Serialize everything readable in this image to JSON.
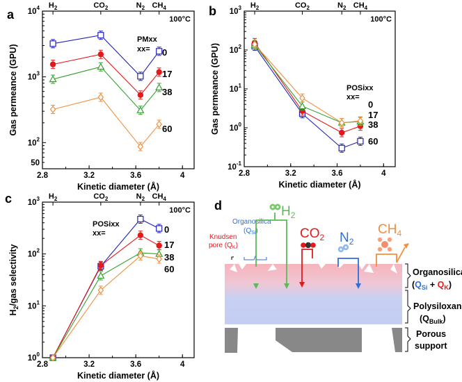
{
  "colors": {
    "blue": "#2222bb",
    "red": "#e31a1c",
    "green": "#33a02c",
    "orange": "#f28e3a",
    "organosilica_top": "#f4b0b8",
    "polysiloxane": "#c3cdf0",
    "support": "#888888"
  },
  "chart_data": [
    {
      "panel": "a",
      "type": "line",
      "xlabel": "Kinetic diameter (Å)",
      "ylabel": "Gas permeance (GPU)",
      "yscale": "log",
      "xlim": [
        2.8,
        4.1
      ],
      "ylim": [
        40,
        10000
      ],
      "xticks": [
        "2.8",
        "3.2",
        "3.6",
        "4"
      ],
      "yticks": [
        {
          "value": 100,
          "base": "10",
          "exp": "2"
        },
        {
          "value": 1000,
          "base": "10",
          "exp": "3"
        },
        {
          "value": 10000,
          "base": "10",
          "exp": "4"
        }
      ],
      "yticks_plain": [
        {
          "value": 50,
          "label": "50"
        }
      ],
      "top_axis": [
        {
          "x": 2.89,
          "base": "H",
          "sub": "2"
        },
        {
          "x": 3.3,
          "base": "CO",
          "sub": "2"
        },
        {
          "x": 3.64,
          "base": "N",
          "sub": "2"
        },
        {
          "x": 3.8,
          "base": "CH",
          "sub": "4"
        }
      ],
      "condition": "100°C",
      "legend_title": "PMxx",
      "legend_sub": "xx=",
      "x": [
        2.89,
        3.3,
        3.64,
        3.8
      ],
      "series": [
        {
          "name": "0",
          "color": "blue",
          "marker": "square",
          "values": [
            3200,
            4300,
            1020,
            2450
          ]
        },
        {
          "name": "17",
          "color": "red",
          "marker": "circle",
          "values": [
            1550,
            2200,
            530,
            1180
          ]
        },
        {
          "name": "38",
          "color": "green",
          "marker": "triangle",
          "values": [
            920,
            1420,
            310,
            690
          ]
        },
        {
          "name": "60",
          "color": "orange",
          "marker": "diamond",
          "values": [
            320,
            490,
            87,
            190
          ]
        }
      ]
    },
    {
      "panel": "b",
      "type": "line",
      "xlabel": "Kinetic diameter (Å)",
      "ylabel": "Gas permeance (GPU)",
      "yscale": "log",
      "xlim": [
        2.8,
        4.1
      ],
      "ylim": [
        0.1,
        1000
      ],
      "xticks": [
        "2.8",
        "3.2",
        "3.6",
        "4"
      ],
      "yticks": [
        {
          "value": 0.1,
          "base": "10",
          "exp": "-1"
        },
        {
          "value": 1,
          "base": "10",
          "exp": "0"
        },
        {
          "value": 10,
          "base": "10",
          "exp": "1"
        },
        {
          "value": 100,
          "base": "10",
          "exp": "2"
        },
        {
          "value": 1000,
          "base": "10",
          "exp": "3"
        }
      ],
      "yticks_plain": [],
      "top_axis": [
        {
          "x": 2.89,
          "base": "H",
          "sub": "2"
        },
        {
          "x": 3.3,
          "base": "CO",
          "sub": "2"
        },
        {
          "x": 3.64,
          "base": "N",
          "sub": "2"
        },
        {
          "x": 3.8,
          "base": "CH",
          "sub": "4"
        }
      ],
      "condition": "100°C",
      "legend_title": "POSixx",
      "legend_sub": "xx=",
      "x": [
        2.89,
        3.3,
        3.64,
        3.8
      ],
      "series": [
        {
          "name": "0",
          "color": "blue",
          "marker": "square",
          "values": [
            125,
            2.3,
            0.3,
            0.45
          ]
        },
        {
          "name": "17",
          "color": "red",
          "marker": "circle",
          "values": [
            155,
            2.7,
            0.75,
            1.1
          ]
        },
        {
          "name": "38",
          "color": "green",
          "marker": "triangle",
          "values": [
            135,
            3.6,
            1.35,
            1.45
          ]
        },
        {
          "name": "60",
          "color": "orange",
          "marker": "diamond",
          "values": [
            140,
            5.8,
            1.35,
            1.5
          ]
        }
      ]
    },
    {
      "panel": "c",
      "type": "line",
      "xlabel": "Kinetic diameter (Å)",
      "ylabel": "H2/gas selectivity",
      "ylabel_base": "H",
      "ylabel_sub": "2",
      "ylabel_rest": "/gas selectivity",
      "yscale": "log",
      "xlim": [
        2.8,
        4.1
      ],
      "ylim": [
        1,
        1000
      ],
      "xticks": [
        "2.8",
        "3.2",
        "3.6",
        "4"
      ],
      "yticks": [
        {
          "value": 1,
          "base": "10",
          "exp": "0"
        },
        {
          "value": 10,
          "base": "10",
          "exp": "1"
        },
        {
          "value": 100,
          "base": "10",
          "exp": "2"
        },
        {
          "value": 1000,
          "base": "10",
          "exp": "3"
        }
      ],
      "yticks_plain": [],
      "top_axis": [
        {
          "x": 2.89,
          "base": "H",
          "sub": "2"
        },
        {
          "x": 3.3,
          "base": "CO",
          "sub": "2"
        },
        {
          "x": 3.64,
          "base": "N",
          "sub": "2"
        },
        {
          "x": 3.8,
          "base": "CH",
          "sub": "4"
        }
      ],
      "condition": "100°C",
      "legend_title": "POSixx",
      "legend_sub": "xx=",
      "x": [
        2.89,
        3.3,
        3.64,
        3.8
      ],
      "series": [
        {
          "name": "0",
          "color": "blue",
          "marker": "square",
          "values": [
            1,
            58,
            470,
            310
          ]
        },
        {
          "name": "17",
          "color": "red",
          "marker": "circle",
          "values": [
            1,
            60,
            230,
            145
          ]
        },
        {
          "name": "38",
          "color": "green",
          "marker": "triangle",
          "values": [
            1,
            38,
            105,
            100
          ]
        },
        {
          "name": "60",
          "color": "orange",
          "marker": "diamond",
          "values": [
            1,
            20,
            92,
            80
          ]
        }
      ]
    }
  ],
  "panel_d": {
    "label": "d",
    "gases": [
      {
        "base": "H",
        "sub": "2",
        "color": "green"
      },
      {
        "base": "CO",
        "sub": "2",
        "color": "red"
      },
      {
        "base": "N",
        "sub": "2",
        "color": "blue"
      },
      {
        "base": "CH",
        "sub": "4",
        "color": "orange"
      }
    ],
    "organosilica_callout": {
      "line1": "Organosilica",
      "line2_pre": "(Q",
      "line2_sub": "Si",
      "line2_post": ")"
    },
    "knudsen_callout": {
      "line1": "Knudsen",
      "line2_pre": "pore (Q",
      "line2_sub": "K",
      "line2_post": ")"
    },
    "layers": {
      "organosilica": {
        "title": "Organosilica",
        "q1_base": "Q",
        "q1_sub": "Si",
        "plus": " + ",
        "q2_base": "Q",
        "q2_sub": "K"
      },
      "polysiloxane": {
        "title": "Polysiloxane",
        "q_pre": "(Q",
        "q_sub": "Bulk",
        "q_post": ")"
      },
      "support": {
        "line1": "Porous",
        "line2": "support"
      }
    }
  }
}
